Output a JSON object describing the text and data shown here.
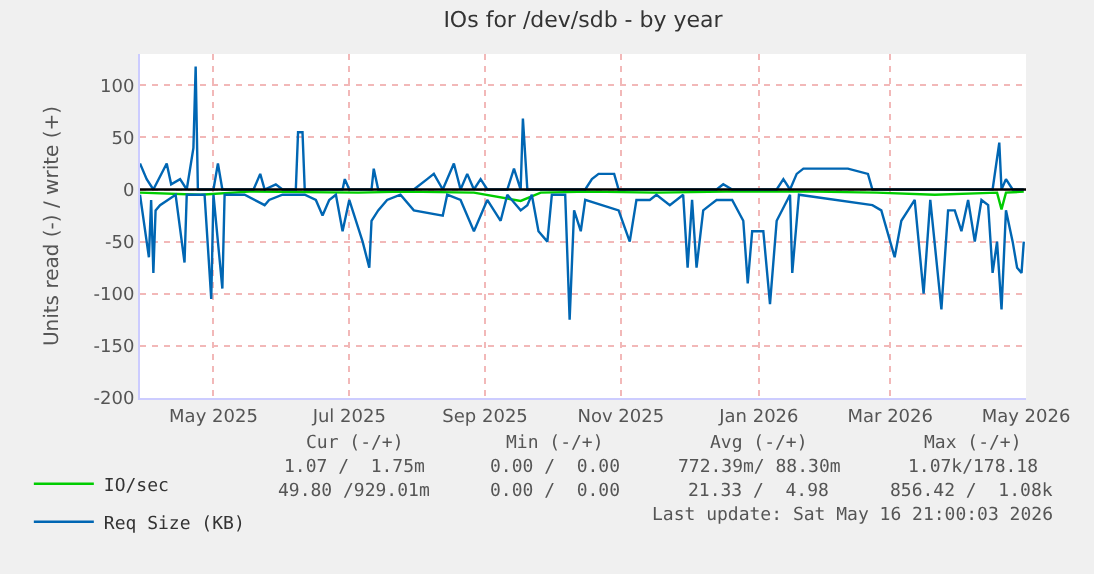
{
  "chart_data": {
    "type": "line",
    "title": "IOs for /dev/sdb - by year",
    "ylabel": "Units read (-) / write (+)",
    "xlim": [
      "2025-04-13",
      "2026-05-16"
    ],
    "xticks": [
      {
        "value": "2025-05-16",
        "label": "May 2025"
      },
      {
        "value": "2025-07-16",
        "label": "Jul 2025"
      },
      {
        "value": "2025-09-15",
        "label": "Sep 2025"
      },
      {
        "value": "2025-11-15",
        "label": "Nov 2025"
      },
      {
        "value": "2026-01-16",
        "label": "Jan 2026"
      },
      {
        "value": "2026-03-16",
        "label": "Mar 2026"
      },
      {
        "value": "2026-05-16",
        "label": "May 2026"
      }
    ],
    "ylim": [
      -200,
      130
    ],
    "yticks": [
      -200,
      -150,
      -100,
      -50,
      0,
      50,
      100
    ],
    "grid": true,
    "legend": "bottom left",
    "marker": "none",
    "line_style": "solid",
    "ref_lines": [
      {
        "axis": "y",
        "value": 0,
        "color": "#000000"
      }
    ],
    "series": [
      {
        "name": "IO/sec",
        "color": "#00cc00",
        "x": [
          "2025-04-13",
          "2025-05-10",
          "2025-06-01",
          "2025-07-20",
          "2025-08-10",
          "2025-09-10",
          "2025-10-01",
          "2025-10-10",
          "2025-11-01",
          "2025-12-01",
          "2026-01-01",
          "2026-02-10",
          "2026-03-10",
          "2026-04-05",
          "2026-05-03",
          "2026-05-05",
          "2026-05-07",
          "2026-05-15"
        ],
        "values": [
          -3,
          -5,
          -2,
          -3,
          -2,
          -3,
          -11,
          -3,
          -2,
          -3,
          -2,
          -2,
          -3,
          -5,
          -3,
          -19,
          -3,
          -2
        ]
      },
      {
        "color": "#0066b3",
        "x": [
          "2025-04-13",
          "2025-04-16",
          "2025-04-19",
          "2025-04-25",
          "2025-04-27",
          "2025-05-01",
          "2025-05-04",
          "2025-05-07",
          "2025-05-08",
          "2025-05-09",
          "2025-05-16",
          "2025-05-18",
          "2025-05-20",
          "2025-06-03",
          "2025-06-06",
          "2025-06-08",
          "2025-06-13",
          "2025-06-16",
          "2025-06-22",
          "2025-06-23",
          "2025-06-25",
          "2025-06-26",
          "2025-07-13",
          "2025-07-14",
          "2025-07-16",
          "2025-07-26",
          "2025-07-27",
          "2025-07-29",
          "2025-08-14",
          "2025-08-20",
          "2025-08-23",
          "2025-08-27",
          "2025-09-01",
          "2025-09-04",
          "2025-09-07",
          "2025-09-10",
          "2025-09-13",
          "2025-09-16",
          "2025-09-25",
          "2025-09-28",
          "2025-10-01",
          "2025-10-02",
          "2025-10-04",
          "2025-10-30",
          "2025-11-02",
          "2025-11-05",
          "2025-11-12",
          "2025-11-14",
          "2025-12-28",
          "2025-12-31",
          "2026-01-04",
          "2026-01-24",
          "2026-01-27",
          "2026-01-30",
          "2026-02-02",
          "2026-02-05",
          "2026-02-10",
          "2026-02-16",
          "2026-02-25",
          "2026-03-06",
          "2026-03-08",
          "2026-05-01",
          "2026-05-04",
          "2026-05-05",
          "2026-05-07",
          "2026-05-10",
          "2026-05-15"
        ],
        "values": [
          25,
          10,
          0,
          25,
          5,
          10,
          0,
          40,
          118,
          0,
          0,
          25,
          0,
          0,
          15,
          0,
          5,
          0,
          0,
          55,
          55,
          0,
          0,
          10,
          0,
          0,
          20,
          0,
          0,
          10,
          15,
          0,
          25,
          0,
          15,
          0,
          10,
          0,
          0,
          20,
          0,
          68,
          0,
          0,
          10,
          15,
          15,
          0,
          0,
          5,
          0,
          0,
          10,
          0,
          15,
          20,
          20,
          20,
          20,
          15,
          0,
          0,
          45,
          0,
          10,
          0,
          0
        ]
      },
      {
        "name": "Req Size (KB)",
        "color": "#0066b3",
        "x": [
          "2025-04-13",
          "2025-04-17",
          "2025-04-18",
          "2025-04-19",
          "2025-04-20",
          "2025-04-22",
          "2025-04-29",
          "2025-05-03",
          "2025-05-04",
          "2025-05-12",
          "2025-05-15",
          "2025-05-16",
          "2025-05-20",
          "2025-05-21",
          "2025-05-24",
          "2025-05-30",
          "2025-06-08",
          "2025-06-10",
          "2025-06-16",
          "2025-06-19",
          "2025-06-26",
          "2025-07-01",
          "2025-07-04",
          "2025-07-07",
          "2025-07-10",
          "2025-07-13",
          "2025-07-16",
          "2025-07-22",
          "2025-07-25",
          "2025-07-26",
          "2025-07-29",
          "2025-08-02",
          "2025-08-08",
          "2025-08-14",
          "2025-08-27",
          "2025-08-29",
          "2025-09-04",
          "2025-09-10",
          "2025-09-16",
          "2025-09-19",
          "2025-09-22",
          "2025-09-25",
          "2025-10-01",
          "2025-10-04",
          "2025-10-06",
          "2025-10-09",
          "2025-10-13",
          "2025-10-15",
          "2025-10-21",
          "2025-10-23",
          "2025-10-25",
          "2025-10-28",
          "2025-10-30",
          "2025-11-14",
          "2025-11-19",
          "2025-11-22",
          "2025-11-28",
          "2025-12-01",
          "2025-12-07",
          "2025-12-13",
          "2025-12-15",
          "2025-12-17",
          "2025-12-19",
          "2025-12-22",
          "2025-12-25",
          "2025-12-28",
          "2026-01-04",
          "2026-01-09",
          "2026-01-11",
          "2026-01-13",
          "2026-01-18",
          "2026-01-21",
          "2026-01-24",
          "2026-01-30",
          "2026-01-31",
          "2026-02-03",
          "2026-03-08",
          "2026-03-12",
          "2026-03-18",
          "2026-03-21",
          "2026-03-24",
          "2026-03-27",
          "2026-03-31",
          "2026-04-03",
          "2026-04-08",
          "2026-04-11",
          "2026-04-14",
          "2026-04-17",
          "2026-04-20",
          "2026-04-23",
          "2026-04-26",
          "2026-04-29",
          "2026-05-01",
          "2026-05-03",
          "2026-05-05",
          "2026-05-07",
          "2026-05-10",
          "2026-05-12",
          "2026-05-14",
          "2026-05-15"
        ],
        "values": [
          -5,
          -65,
          -10,
          -80,
          -20,
          -15,
          -5,
          -70,
          -5,
          -5,
          -105,
          -5,
          -95,
          -5,
          -5,
          -5,
          -15,
          -10,
          -5,
          -5,
          -5,
          -10,
          -25,
          -10,
          -5,
          -40,
          -10,
          -50,
          -75,
          -30,
          -20,
          -10,
          -5,
          -20,
          -25,
          -5,
          -10,
          -40,
          -10,
          -20,
          -30,
          -5,
          -20,
          -15,
          -5,
          -40,
          -50,
          -5,
          -5,
          -125,
          -20,
          -40,
          -10,
          -20,
          -50,
          -10,
          -10,
          -5,
          -15,
          -5,
          -75,
          -10,
          -75,
          -20,
          -15,
          -10,
          -10,
          -30,
          -90,
          -40,
          -40,
          -110,
          -30,
          -5,
          -80,
          -5,
          -15,
          -20,
          -65,
          -30,
          -20,
          -10,
          -100,
          -10,
          -115,
          -20,
          -20,
          -40,
          -10,
          -50,
          -10,
          -15,
          -80,
          -50,
          -115,
          -20,
          -50,
          -75,
          -80,
          -50
        ]
      }
    ],
    "annotations": [
      "Cur (-/+)",
      "Min (-/+)",
      "Avg (-/+)",
      "Max (-/+)",
      "1.07 /  1.75m",
      "0.00 /  0.00",
      "772.39m/ 88.30m",
      "1.07k/178.18",
      "49.80 /929.01m",
      "0.00 /  0.00",
      "21.33 /  4.98",
      "856.42 /  1.08k",
      "Last update: Sat May 16 21:00:03 2026"
    ]
  }
}
